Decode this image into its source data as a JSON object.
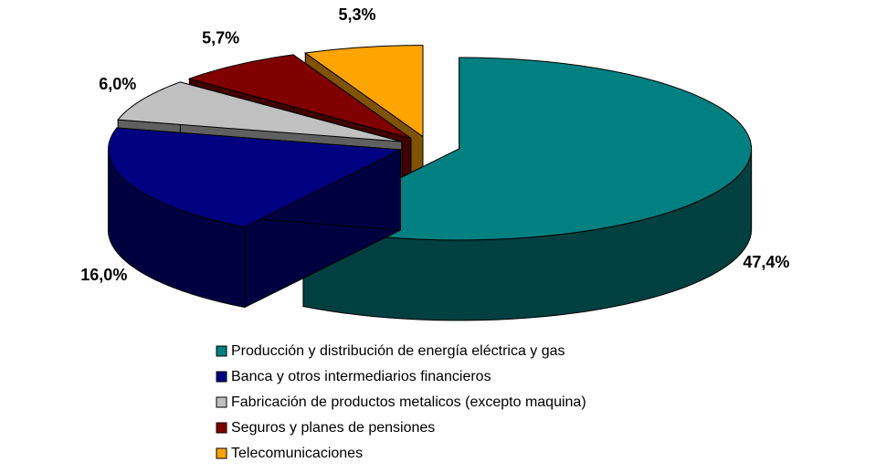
{
  "chart_data": {
    "type": "pie",
    "categories": [
      "Producción y distribución de energía eléctrica y gas",
      "Banca y otros intermediarios financieros",
      "Fabricación de productos metalicos (excepto maquina)",
      "Seguros y planes de pensiones",
      "Telecomunicaciones"
    ],
    "values": [
      47.4,
      16.0,
      6.0,
      5.7,
      5.3
    ],
    "value_labels": [
      "47,4%",
      "16,0%",
      "6,0%",
      "5,7%",
      "5,3%"
    ],
    "colors": [
      "#008080",
      "#000080",
      "#c0c0c0",
      "#800000",
      "#ffa500"
    ],
    "legend": "bottom"
  }
}
